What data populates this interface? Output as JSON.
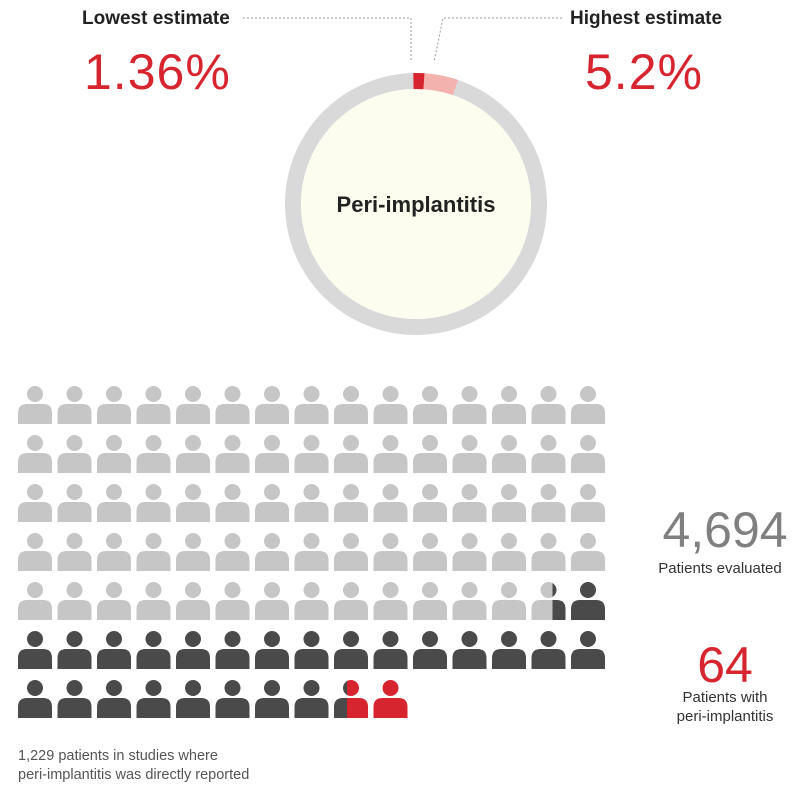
{
  "colors": {
    "accent_red": "#d7252f",
    "light_red": "#f4b2ae",
    "ring_gray": "#d9d9d9",
    "center_fill": "#fcfcef",
    "person_light": "#c6c6c6",
    "person_dark": "#4a4a4a",
    "big_number_gray": "#808080",
    "leader_line": "#9a9a9a"
  },
  "chart_data": [
    {
      "type": "pie",
      "title": "Peri-implantitis",
      "slices": [
        {
          "name": "Lowest estimate",
          "value_label": "1.36%",
          "value": 1.36,
          "color": "#d7252f"
        },
        {
          "name": "Highest estimate",
          "value_label": "5.2%",
          "value": 5.2,
          "color": "#f4b2ae"
        }
      ]
    },
    {
      "type": "pictogram",
      "grid": {
        "columns": 15,
        "rows": 7,
        "total_icons": 97
      },
      "categories": [
        "light",
        "dark",
        "red"
      ],
      "values": [
        73.7,
        21.5,
        1.8
      ],
      "series": [
        {
          "value": 4694,
          "label": "Patients evaluated",
          "color": "#808080"
        },
        {
          "value": 64,
          "label": "Patients with\nperi-implantitis",
          "color": "#d7252f"
        },
        {
          "value": 1229,
          "label": "1,229 patients in studies where\nperi-implantitis was directly reported",
          "color": "#4a4a4a"
        }
      ]
    }
  ],
  "donut": {
    "center_label": "Peri-implantitis"
  },
  "estimates": {
    "lowest": {
      "label": "Lowest estimate",
      "value": "1.36%"
    },
    "highest": {
      "label": "Highest estimate",
      "value": "5.2%"
    }
  },
  "stats": {
    "evaluated": {
      "number": "4,694",
      "label": "Patients evaluated"
    },
    "affected": {
      "number": "64",
      "label_line1": "Patients with",
      "label_line2": "peri-implantitis"
    }
  },
  "caption": {
    "line1": "1,229 patients in studies where",
    "line2": "peri-implantitis was directly reported"
  }
}
